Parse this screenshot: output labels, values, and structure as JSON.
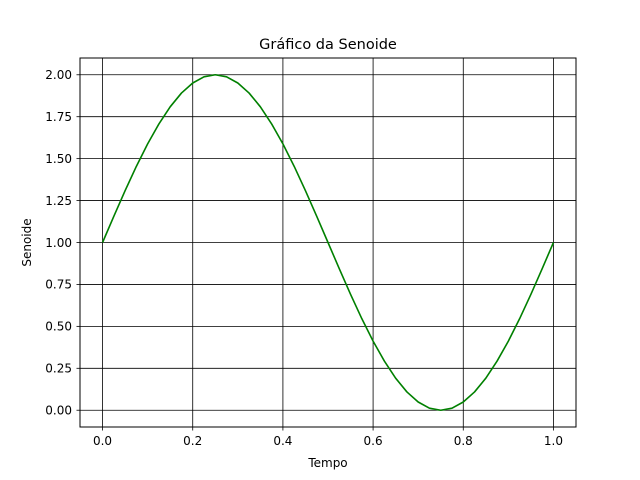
{
  "chart_data": {
    "type": "line",
    "title": "Gráfico da Senoide",
    "xlabel": "Tempo",
    "ylabel": "Senoide",
    "xlim": [
      -0.05,
      1.05
    ],
    "ylim": [
      -0.1,
      2.1
    ],
    "xticks": [
      0.0,
      0.2,
      0.4,
      0.6,
      0.8,
      1.0
    ],
    "xtick_labels": [
      "0.0",
      "0.2",
      "0.4",
      "0.6",
      "0.8",
      "1.0"
    ],
    "yticks": [
      0.0,
      0.25,
      0.5,
      0.75,
      1.0,
      1.25,
      1.5,
      1.75,
      2.0
    ],
    "ytick_labels": [
      "0.00",
      "0.25",
      "0.50",
      "0.75",
      "1.00",
      "1.25",
      "1.50",
      "1.75",
      "2.00"
    ],
    "grid": true,
    "grid_color": "#000000",
    "series": [
      {
        "color": "#008000",
        "x": [
          0.0,
          0.025,
          0.05,
          0.075,
          0.1,
          0.125,
          0.15,
          0.175,
          0.2,
          0.225,
          0.25,
          0.275,
          0.3,
          0.325,
          0.35,
          0.375,
          0.4,
          0.425,
          0.45,
          0.475,
          0.5,
          0.525,
          0.55,
          0.575,
          0.6,
          0.625,
          0.65,
          0.675,
          0.7,
          0.725,
          0.75,
          0.775,
          0.8,
          0.825,
          0.85,
          0.875,
          0.9,
          0.925,
          0.95,
          0.975,
          1.0
        ],
        "y": [
          1.0,
          1.156,
          1.309,
          1.454,
          1.588,
          1.707,
          1.809,
          1.891,
          1.951,
          1.988,
          2.0,
          1.988,
          1.951,
          1.891,
          1.809,
          1.707,
          1.588,
          1.454,
          1.309,
          1.156,
          1.0,
          0.844,
          0.691,
          0.546,
          0.412,
          0.293,
          0.191,
          0.109,
          0.049,
          0.012,
          0.0,
          0.012,
          0.049,
          0.109,
          0.191,
          0.293,
          0.412,
          0.546,
          0.691,
          0.844,
          1.0
        ]
      }
    ]
  }
}
